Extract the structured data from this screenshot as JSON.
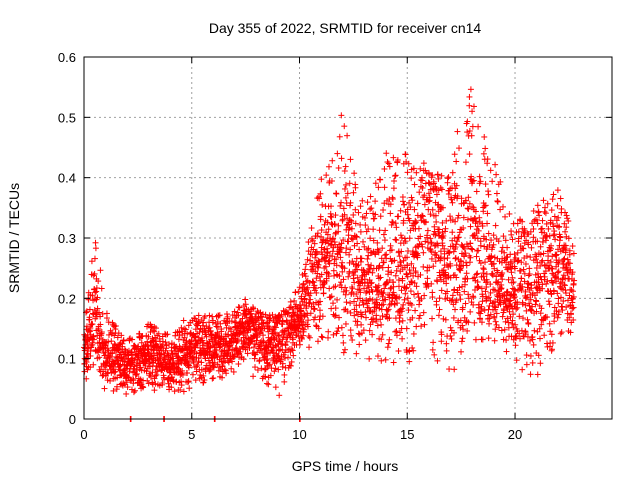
{
  "chart_data": {
    "type": "scatter",
    "title": "Day 355 of 2022, SRMTID for receiver cn14",
    "xlabel": "GPS time / hours",
    "ylabel": "SRMTID / TECUs",
    "xlim": [
      0,
      24.5
    ],
    "ylim": [
      0,
      0.6
    ],
    "x_ticks": [
      0,
      5,
      10,
      15,
      20
    ],
    "x_tick_labels": [
      "0",
      "5",
      "10",
      "15",
      "20"
    ],
    "y_ticks": [
      0,
      0.1,
      0.2,
      0.3,
      0.4,
      0.5,
      0.6
    ],
    "y_tick_labels": [
      "0",
      "0.1",
      "0.2",
      "0.3",
      "0.4",
      "0.5",
      "0.6"
    ],
    "grid": true,
    "marker": "+",
    "color": "#ff0000",
    "series": [
      {
        "name": "cn14",
        "sampling_interval_hours": 0.01,
        "x_start": 0.0,
        "x_end": 22.75,
        "envelope": [
          {
            "x": 0.0,
            "low": 0.05,
            "mid": 0.1,
            "high": 0.16
          },
          {
            "x": 0.5,
            "low": 0.07,
            "mid": 0.15,
            "high": 0.32
          },
          {
            "x": 1.0,
            "low": 0.05,
            "mid": 0.1,
            "high": 0.18
          },
          {
            "x": 2.0,
            "low": 0.04,
            "mid": 0.08,
            "high": 0.13
          },
          {
            "x": 3.0,
            "low": 0.05,
            "mid": 0.1,
            "high": 0.16
          },
          {
            "x": 4.0,
            "low": 0.04,
            "mid": 0.08,
            "high": 0.14
          },
          {
            "x": 5.0,
            "low": 0.05,
            "mid": 0.11,
            "high": 0.18
          },
          {
            "x": 6.0,
            "low": 0.06,
            "mid": 0.11,
            "high": 0.17
          },
          {
            "x": 7.0,
            "low": 0.08,
            "mid": 0.13,
            "high": 0.18
          },
          {
            "x": 7.5,
            "low": 0.1,
            "mid": 0.15,
            "high": 0.2
          },
          {
            "x": 8.0,
            "low": 0.06,
            "mid": 0.12,
            "high": 0.18
          },
          {
            "x": 9.0,
            "low": 0.04,
            "mid": 0.11,
            "high": 0.17
          },
          {
            "x": 10.0,
            "low": 0.1,
            "mid": 0.16,
            "high": 0.22
          },
          {
            "x": 11.0,
            "low": 0.12,
            "mid": 0.24,
            "high": 0.4
          },
          {
            "x": 12.0,
            "low": 0.12,
            "mid": 0.26,
            "high": 0.52
          },
          {
            "x": 13.0,
            "low": 0.1,
            "mid": 0.21,
            "high": 0.35
          },
          {
            "x": 14.0,
            "low": 0.1,
            "mid": 0.21,
            "high": 0.45
          },
          {
            "x": 15.0,
            "low": 0.1,
            "mid": 0.24,
            "high": 0.44
          },
          {
            "x": 16.0,
            "low": 0.12,
            "mid": 0.28,
            "high": 0.42
          },
          {
            "x": 17.0,
            "low": 0.08,
            "mid": 0.22,
            "high": 0.44
          },
          {
            "x": 18.0,
            "low": 0.12,
            "mid": 0.27,
            "high": 0.56
          },
          {
            "x": 19.0,
            "low": 0.12,
            "mid": 0.22,
            "high": 0.43
          },
          {
            "x": 20.0,
            "low": 0.1,
            "mid": 0.19,
            "high": 0.32
          },
          {
            "x": 21.0,
            "low": 0.06,
            "mid": 0.21,
            "high": 0.38
          },
          {
            "x": 22.0,
            "low": 0.12,
            "mid": 0.24,
            "high": 0.38
          },
          {
            "x": 22.75,
            "low": 0.15,
            "mid": 0.22,
            "high": 0.3
          }
        ],
        "zero_points_x": [
          2.15,
          3.7,
          6.05,
          10.0
        ]
      }
    ]
  }
}
